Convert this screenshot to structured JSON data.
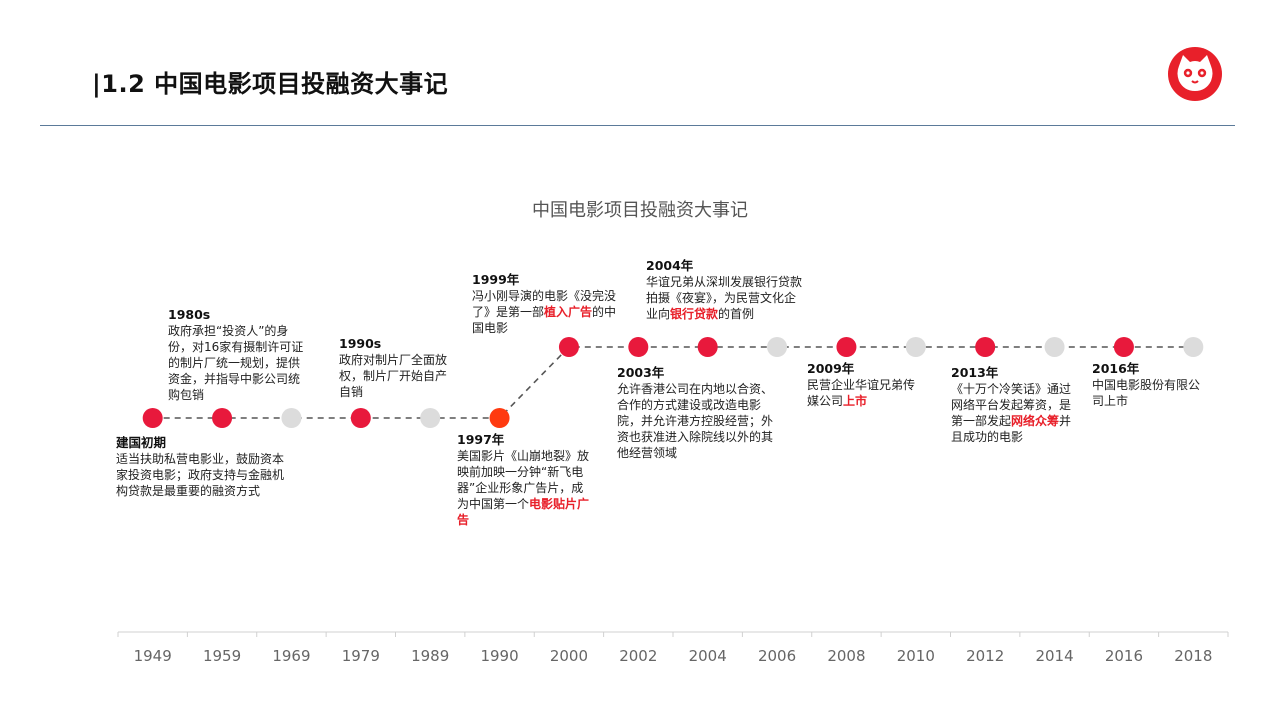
{
  "slide": {
    "title": "|1.2 中国电影项目投融资大事记"
  },
  "colors": {
    "milestone": "#e8193c",
    "highlight": "#ff3a10",
    "inactive": "#dcdcdc",
    "accent_text": "#e8202a",
    "rule": "#5b7a99"
  },
  "logo": {
    "icon": "cat-face-icon"
  },
  "chart_data": {
    "type": "timeline",
    "title": "中国电影项目投融资大事记",
    "categories": [
      "1949",
      "1959",
      "1969",
      "1979",
      "1989",
      "1990",
      "2000",
      "2002",
      "2004",
      "2006",
      "2008",
      "2010",
      "2012",
      "2014",
      "2016",
      "2018"
    ],
    "levels": [
      0,
      0,
      0,
      0,
      0,
      0,
      1,
      1,
      1,
      1,
      1,
      1,
      1,
      1,
      1,
      1
    ],
    "states": [
      "milestone",
      "milestone",
      "inactive",
      "milestone",
      "inactive",
      "highlight",
      "milestone",
      "milestone",
      "milestone",
      "inactive",
      "milestone",
      "inactive",
      "milestone",
      "inactive",
      "milestone",
      "inactive"
    ],
    "events": [
      {
        "year_label": "建国初期",
        "parts": [
          {
            "t": "适当扶助私营电影业，鼓励资本家投资电影；政府支持与金融机构贷款是最重要的融资方式",
            "hl": false
          }
        ]
      },
      {
        "year_label": "1980s",
        "parts": [
          {
            "t": "政府承担“投资人”的身份，对16家有摄制许可证的制片厂统一规划，提供资金，并指导中影公司统购包销",
            "hl": false
          }
        ]
      },
      {
        "year_label": "1990s",
        "parts": [
          {
            "t": "政府对制片厂全面放权，制片厂开始自产自销",
            "hl": false
          }
        ]
      },
      {
        "year_label": "1997年",
        "parts": [
          {
            "t": "美国影片《山崩地裂》放映前加映一分钟“新飞电器”企业形象广告片，成为中国第一个",
            "hl": false
          },
          {
            "t": "电影贴片广告",
            "hl": true
          }
        ]
      },
      {
        "year_label": "1999年",
        "parts": [
          {
            "t": "冯小刚导演的电影《没完没了》是第一部",
            "hl": false
          },
          {
            "t": "植入广告",
            "hl": true
          },
          {
            "t": "的中国电影",
            "hl": false
          }
        ]
      },
      {
        "year_label": "2003年",
        "parts": [
          {
            "t": "允许香港公司在内地以合资、合作的方式建设或改造电影院，并允许港方控股经营；外资也获准进入除院线以外的其他经营领域",
            "hl": false
          }
        ]
      },
      {
        "year_label": "2004年",
        "parts": [
          {
            "t": "华谊兄弟从深圳发展银行贷款拍摄《夜宴》，为民营文化企业向",
            "hl": false
          },
          {
            "t": "银行贷款",
            "hl": true
          },
          {
            "t": "的首例",
            "hl": false
          }
        ]
      },
      {
        "year_label": "2009年",
        "parts": [
          {
            "t": "民营企业华谊兄弟传媒公司",
            "hl": false
          },
          {
            "t": "上市",
            "hl": true
          }
        ]
      },
      {
        "year_label": "2013年",
        "parts": [
          {
            "t": "《十万个冷笑话》通过网络平台发起筹资，是第一部发起",
            "hl": false
          },
          {
            "t": "网络众筹",
            "hl": true
          },
          {
            "t": "并且成功的电影",
            "hl": false
          }
        ]
      },
      {
        "year_label": "2016年",
        "parts": [
          {
            "t": "中国电影股份有限公司上市",
            "hl": false
          }
        ]
      }
    ]
  }
}
